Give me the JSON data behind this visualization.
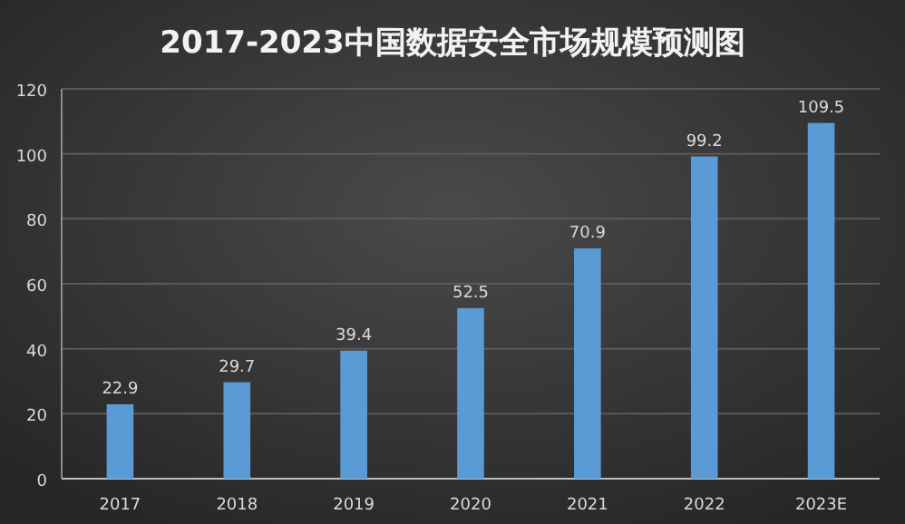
{
  "chart_data": {
    "type": "bar",
    "title": "2017-2023中国数据安全市场规模预测图",
    "categories": [
      "2017",
      "2018",
      "2019",
      "2020",
      "2021",
      "2022",
      "2023E"
    ],
    "values": [
      22.9,
      29.7,
      39.4,
      52.5,
      70.9,
      99.2,
      109.5
    ],
    "color": "#5b9bd5",
    "ylim": [
      0,
      120
    ],
    "yticks": [
      0,
      20,
      40,
      60,
      80,
      100,
      120
    ],
    "grid": "y",
    "data_labels": true
  }
}
